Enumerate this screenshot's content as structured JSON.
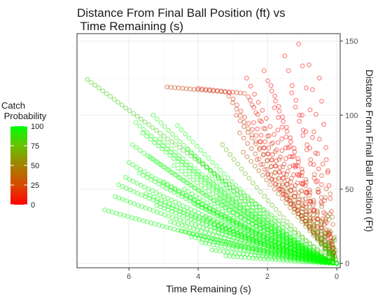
{
  "chart_data": {
    "type": "scatter",
    "title_lines": [
      "Distance From Final Ball Position (ft) vs",
      " Time Remaining (s)"
    ],
    "xlabel": "Time Remaining (s)",
    "ylabel": "Distance From Final Ball Position (Ft)",
    "x_reversed": true,
    "xlim": [
      7.5,
      -0.1
    ],
    "ylim": [
      -3,
      155
    ],
    "x_ticks": [
      6,
      4,
      2,
      0
    ],
    "y_ticks": [
      0,
      50,
      100,
      150
    ],
    "y_axis_position": "right",
    "grid": true,
    "legend": {
      "title_lines": [
        "Catch",
        " Probability"
      ],
      "position": "left",
      "stops": [
        0,
        25,
        50,
        75,
        100
      ],
      "colors": {
        "low": "#ff0000",
        "high": "#00ff00"
      }
    },
    "trajectories_estimated": [
      {
        "start": [
          7.2,
          124
        ],
        "shape": "straight",
        "prob": 80
      },
      {
        "start": [
          6.7,
          36
        ],
        "shape": "concave",
        "prob": 100
      },
      {
        "start": [
          6.4,
          45
        ],
        "shape": "concave",
        "prob": 100
      },
      {
        "start": [
          6.3,
          53
        ],
        "shape": "concave",
        "prob": 100
      },
      {
        "start": [
          6.1,
          58
        ],
        "shape": "concave",
        "prob": 100
      },
      {
        "start": [
          6.0,
          68
        ],
        "shape": "concave",
        "prob": 100
      },
      {
        "start": [
          5.9,
          80
        ],
        "shape": "concave",
        "prob": 100
      },
      {
        "start": [
          5.8,
          95
        ],
        "shape": "concave",
        "prob": 100
      },
      {
        "start": [
          5.7,
          61
        ],
        "shape": "concave",
        "prob": 100
      },
      {
        "start": [
          5.6,
          88
        ],
        "shape": "concave",
        "prob": 100
      },
      {
        "start": [
          5.5,
          47
        ],
        "shape": "concave",
        "prob": 100
      },
      {
        "start": [
          5.4,
          72
        ],
        "shape": "concave",
        "prob": 100
      },
      {
        "start": [
          5.3,
          100
        ],
        "shape": "concave",
        "prob": 95
      },
      {
        "start": [
          5.2,
          39
        ],
        "shape": "concave",
        "prob": 100
      },
      {
        "start": [
          5.1,
          84
        ],
        "shape": "concave",
        "prob": 100
      },
      {
        "start": [
          5.0,
          55
        ],
        "shape": "concave",
        "prob": 100
      },
      {
        "start": [
          4.9,
          119
        ],
        "shape": "plateau",
        "prob": 20
      },
      {
        "start": [
          4.8,
          28
        ],
        "shape": "concave",
        "prob": 100
      },
      {
        "start": [
          4.7,
          66
        ],
        "shape": "concave",
        "prob": 100
      },
      {
        "start": [
          4.6,
          93
        ],
        "shape": "concave",
        "prob": 100
      },
      {
        "start": [
          4.5,
          22
        ],
        "shape": "concave",
        "prob": 100
      },
      {
        "start": [
          4.4,
          50
        ],
        "shape": "concave",
        "prob": 100
      },
      {
        "start": [
          4.3,
          77
        ],
        "shape": "concave",
        "prob": 100
      },
      {
        "start": [
          4.2,
          18
        ],
        "shape": "concave",
        "prob": 100
      },
      {
        "start": [
          4.1,
          40
        ],
        "shape": "concave",
        "prob": 100
      },
      {
        "start": [
          4.0,
          118
        ],
        "shape": "plateau",
        "prob": 10
      },
      {
        "start": [
          3.9,
          14
        ],
        "shape": "concave",
        "prob": 100
      },
      {
        "start": [
          3.8,
          31
        ],
        "shape": "concave",
        "prob": 100
      },
      {
        "start": [
          3.7,
          59
        ],
        "shape": "concave",
        "prob": 100
      },
      {
        "start": [
          3.6,
          9
        ],
        "shape": "concave",
        "prob": 100
      },
      {
        "start": [
          3.5,
          24
        ],
        "shape": "concave",
        "prob": 100
      },
      {
        "start": [
          3.4,
          44
        ],
        "shape": "concave",
        "prob": 100
      },
      {
        "start": [
          3.3,
          80
        ],
        "shape": "concave",
        "prob": 70
      },
      {
        "start": [
          3.2,
          5
        ],
        "shape": "concave",
        "prob": 100
      },
      {
        "start": [
          3.1,
          115
        ],
        "shape": "straight",
        "prob": 5
      },
      {
        "start": [
          2.9,
          100
        ],
        "shape": "straight",
        "prob": 10
      },
      {
        "start": [
          2.8,
          88
        ],
        "shape": "straight",
        "prob": 20
      },
      {
        "start": [
          2.7,
          75
        ],
        "shape": "straight",
        "prob": 35
      },
      {
        "start": [
          2.6,
          125
        ],
        "shape": "straight",
        "prob": 0
      },
      {
        "start": [
          2.5,
          110
        ],
        "shape": "straight",
        "prob": 0
      },
      {
        "start": [
          2.4,
          95
        ],
        "shape": "straight",
        "prob": 0
      },
      {
        "start": [
          2.3,
          70
        ],
        "shape": "straight",
        "prob": 10
      },
      {
        "start": [
          2.2,
          82
        ],
        "shape": "straight",
        "prob": 5
      },
      {
        "start": [
          2.1,
          130
        ],
        "shape": "straight",
        "prob": 0
      },
      {
        "start": [
          2.0,
          60
        ],
        "shape": "straight",
        "prob": 15
      },
      {
        "start": [
          1.9,
          120
        ],
        "shape": "straight",
        "prob": 0
      },
      {
        "start": [
          1.8,
          105
        ],
        "shape": "straight",
        "prob": 0
      },
      {
        "start": [
          1.7,
          90
        ],
        "shape": "straight",
        "prob": 0
      },
      {
        "start": [
          1.6,
          50
        ],
        "shape": "straight",
        "prob": 10
      },
      {
        "start": [
          1.5,
          140
        ],
        "shape": "straight",
        "prob": 0
      },
      {
        "start": [
          1.4,
          78
        ],
        "shape": "straight",
        "prob": 0
      },
      {
        "start": [
          1.3,
          115
        ],
        "shape": "straight",
        "prob": 0
      },
      {
        "start": [
          1.2,
          65
        ],
        "shape": "straight",
        "prob": 0
      },
      {
        "start": [
          1.1,
          148
        ],
        "shape": "straight",
        "prob": 0
      },
      {
        "start": [
          1.0,
          100
        ],
        "shape": "straight",
        "prob": 0
      },
      {
        "start": [
          0.9,
          40
        ],
        "shape": "straight",
        "prob": 5
      },
      {
        "start": [
          0.8,
          134
        ],
        "shape": "straight",
        "prob": 0
      },
      {
        "start": [
          0.7,
          85
        ],
        "shape": "straight",
        "prob": 0
      },
      {
        "start": [
          0.6,
          55
        ],
        "shape": "straight",
        "prob": 0
      },
      {
        "start": [
          0.5,
          125
        ],
        "shape": "straight",
        "prob": 0
      },
      {
        "start": [
          0.4,
          30
        ],
        "shape": "straight",
        "prob": 0
      },
      {
        "start": [
          0.3,
          70
        ],
        "shape": "straight",
        "prob": 0
      },
      {
        "start": [
          0.2,
          20
        ],
        "shape": "straight",
        "prob": 0
      }
    ]
  }
}
